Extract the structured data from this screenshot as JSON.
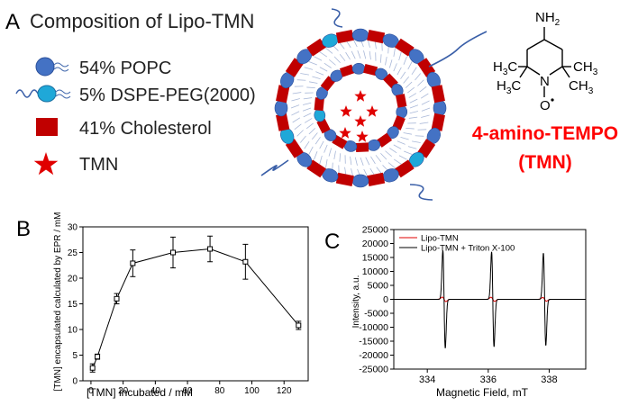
{
  "panel_a": {
    "label": "A",
    "title": "Composition of Lipo-TMN",
    "legend": [
      {
        "label": "54% POPC",
        "color": "#4472c4"
      },
      {
        "label": "5% DSPE-PEG(2000)",
        "color": "#1fa8d8"
      },
      {
        "label": "41% Cholesterol",
        "color": "#c00000"
      },
      {
        "label": "TMN",
        "color": "#e00000"
      }
    ],
    "molecule": {
      "nh2": "NH",
      "nh2_sub": "2",
      "ch3": "H",
      "c_atom": "C",
      "three": "3",
      "n_atom": "N",
      "o_atom": "O",
      "name_line1": "4-amino-TEMPO",
      "name_line2": "(TMN)",
      "name_color": "#ff0000"
    }
  },
  "panel_b": {
    "label": "B",
    "xlabel": "[TMN] incubated / mM",
    "ylabel": "[TMN] encapsulated calculated by EPR / mM",
    "chart_data": {
      "type": "line",
      "x": [
        1,
        4,
        16,
        26,
        51,
        74,
        96,
        129
      ],
      "y": [
        2.5,
        4.7,
        16.0,
        22.9,
        25.0,
        25.7,
        23.2,
        10.8
      ],
      "errors": [
        0.8,
        0.5,
        1.0,
        2.6,
        3.0,
        2.5,
        3.4,
        0.8
      ],
      "xlim": [
        -5,
        135
      ],
      "ylim": [
        0,
        30
      ],
      "xticks": [
        0,
        20,
        40,
        60,
        80,
        100,
        120
      ],
      "yticks": [
        0,
        5,
        10,
        15,
        20,
        25,
        30
      ]
    }
  },
  "panel_c": {
    "label": "C",
    "xlabel": "Magnetic Field, mT",
    "ylabel": "Intensity, a.u.",
    "chart_data": {
      "type": "line",
      "xlim": [
        332.9,
        339.2
      ],
      "ylim": [
        -25000,
        25000
      ],
      "xticks": [
        334,
        336,
        338
      ],
      "yticks": [
        25000,
        20000,
        15000,
        10000,
        5000,
        0,
        -5000,
        -10000,
        -15000,
        -20000,
        -25000
      ],
      "ytick_labels": [
        "25000",
        "20000",
        "15000",
        "10000",
        "5000",
        "0",
        "-5000",
        "-10000",
        "-15000",
        "-20000",
        "-25000"
      ],
      "series": [
        {
          "name": "Lipo-TMN",
          "color": "#e00000",
          "peak_centers": [
            334.55,
            336.15,
            337.85
          ],
          "amplitudes": [
            800,
            750,
            650
          ],
          "width": 0.06
        },
        {
          "name": "Lipo-TMN + Triton X-100",
          "color": "#000000",
          "peak_centers": [
            334.55,
            336.15,
            337.85
          ],
          "amplitudes": [
            17500,
            17000,
            16500
          ],
          "width": 0.04
        }
      ]
    }
  }
}
